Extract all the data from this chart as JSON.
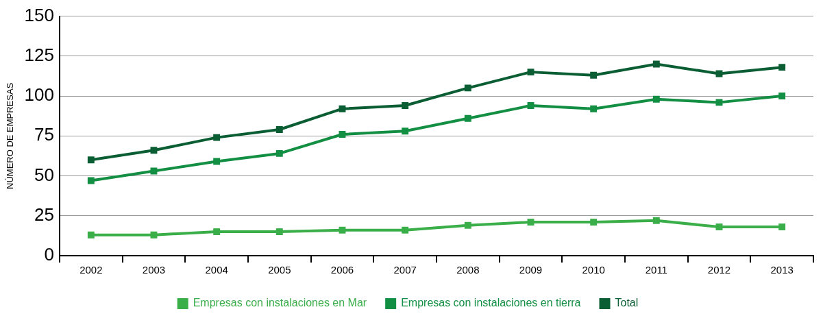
{
  "chart_data": {
    "type": "line",
    "ylabel": "NÚMERO DE EMPRESAS",
    "categories": [
      "2002",
      "2003",
      "2004",
      "2005",
      "2006",
      "2007",
      "2008",
      "2009",
      "2010",
      "2011",
      "2012",
      "2013"
    ],
    "series": [
      {
        "name": "Empresas con instalaciones en Mar",
        "color": "#3aae48",
        "values": [
          13,
          13,
          15,
          15,
          16,
          16,
          19,
          21,
          21,
          22,
          18,
          18
        ]
      },
      {
        "name": "Empresas con instalaciones en tierra",
        "color": "#138f43",
        "values": [
          47,
          53,
          59,
          64,
          76,
          78,
          86,
          94,
          92,
          98,
          96,
          100
        ]
      },
      {
        "name": "Total",
        "color": "#0b5e33",
        "values": [
          60,
          66,
          74,
          79,
          92,
          94,
          105,
          115,
          113,
          120,
          114,
          118
        ]
      }
    ],
    "ylim": [
      0,
      150
    ],
    "yticks": [
      0,
      25,
      50,
      75,
      100,
      125,
      150
    ],
    "grid": "y",
    "legend": "bottom",
    "marker": "square",
    "line_style": "solid"
  }
}
